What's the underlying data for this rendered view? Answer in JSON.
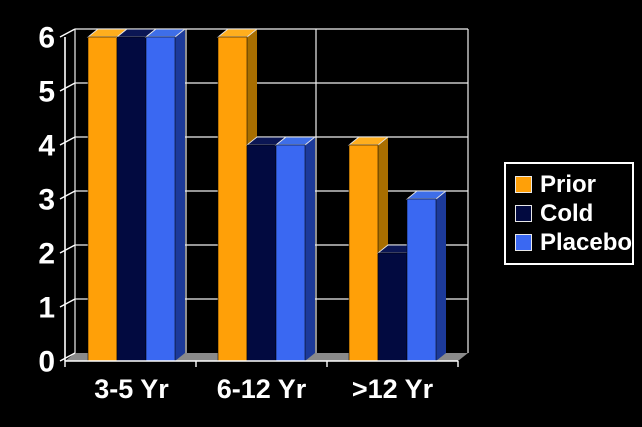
{
  "chart_data": {
    "type": "bar",
    "style": "3d-clustered-columns",
    "title": "",
    "xlabel": "",
    "ylabel": "",
    "categories": [
      "3-5 Yr",
      "6-12 Yr",
      ">12 Yr"
    ],
    "series": [
      {
        "name": "Prior",
        "values": [
          6,
          6,
          4
        ],
        "color": "#FFA008",
        "side_color": "#A86E00",
        "top_color": "#FFAE1E"
      },
      {
        "name": "Cold",
        "values": [
          6,
          4,
          2
        ],
        "color": "#020A40",
        "side_color": "#16246E",
        "top_color": "#0B1654"
      },
      {
        "name": "Placebo",
        "values": [
          6,
          4,
          3
        ],
        "color": "#3A68F2",
        "side_color": "#1C3A9A",
        "top_color": "#3E6EE8"
      }
    ],
    "ylim": [
      0,
      6
    ],
    "yticks": [
      "0",
      "1",
      "2",
      "3",
      "4",
      "5",
      "6"
    ],
    "grid": true,
    "legend_position": "right",
    "colors": {
      "background": "#000000",
      "text": "#FFFFFF",
      "gridline": "#EFEFEF",
      "axis": "#FFFFFF",
      "floor": "#8A8A8A"
    }
  },
  "legend": {
    "items": [
      "Prior",
      "Cold",
      "Placebo"
    ]
  }
}
